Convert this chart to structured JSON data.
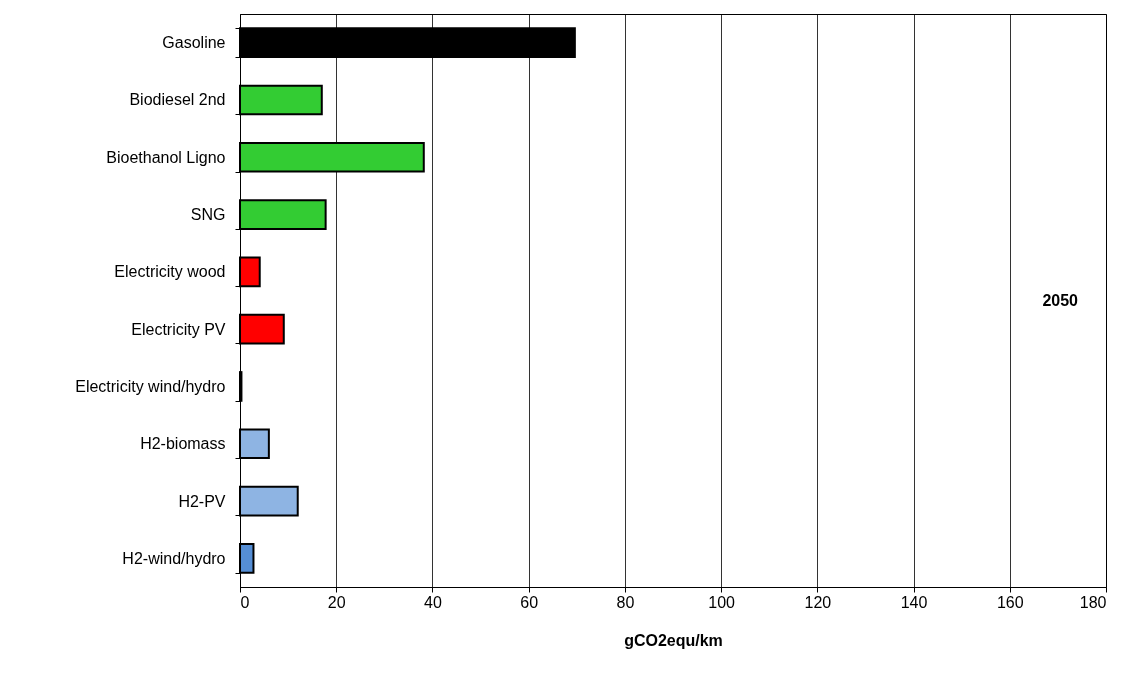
{
  "chart_data": {
    "type": "bar",
    "orientation": "horizontal",
    "xlabel": "gCO2equ/km",
    "categories": [
      "Gasoline",
      "Biodiesel 2nd",
      "Bioethanol Ligno",
      "SNG",
      "Electricity wood",
      "Electricity PV",
      "Electricity wind/hydro",
      "H2-biomass",
      "H2-PV",
      "H2-wind/hydro"
    ],
    "values": [
      69.6,
      17.0,
      38.2,
      17.8,
      4.1,
      9.1,
      0.3,
      6.0,
      12.0,
      2.8
    ],
    "colors": [
      "#000000",
      "#33cc33",
      "#33cc33",
      "#33cc33",
      "#ff0000",
      "#ff0000",
      "#000000",
      "#8eb4e3",
      "#8eb4e3",
      "#558ed5"
    ],
    "xlim": [
      0,
      180
    ],
    "xticks": [
      0,
      20,
      40,
      60,
      80,
      100,
      120,
      140,
      160,
      180
    ],
    "grid": "x",
    "annotations": [
      "2050"
    ]
  }
}
